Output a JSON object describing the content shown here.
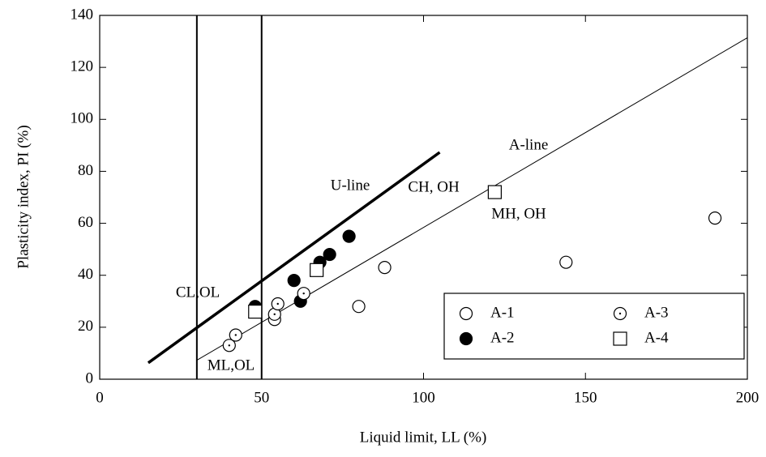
{
  "chart_data": {
    "type": "scatter",
    "x_label": "Liquid limit, LL (%)",
    "y_label": "Plasticity index, PI (%)",
    "xlim": [
      0,
      200
    ],
    "ylim": [
      0,
      140
    ],
    "xticks": [
      0,
      50,
      100,
      150,
      200
    ],
    "yticks": [
      0,
      20,
      40,
      60,
      80,
      100,
      120,
      140
    ],
    "series": [
      {
        "name": "A-1",
        "color": "#000000",
        "marker": "circle",
        "filled": false,
        "dotted": false,
        "x": [
          54,
          80,
          88,
          144,
          190
        ],
        "values": [
          23,
          28,
          43,
          45,
          62
        ]
      },
      {
        "name": "A-2",
        "color": "#000000",
        "marker": "circle",
        "filled": true,
        "dotted": false,
        "x": [
          48,
          60,
          62,
          68,
          71,
          77
        ],
        "values": [
          28,
          38,
          30,
          45,
          48,
          55
        ]
      },
      {
        "name": "A-3",
        "color": "#000000",
        "marker": "circle",
        "filled": false,
        "dotted": true,
        "x": [
          40,
          42,
          54,
          55,
          63
        ],
        "values": [
          13,
          17,
          25,
          29,
          33
        ]
      },
      {
        "name": "A-4",
        "color": "#000000",
        "marker": "square",
        "filled": false,
        "dotted": false,
        "x": [
          48,
          67,
          122
        ],
        "values": [
          26,
          42,
          72
        ]
      }
    ],
    "reference_lines": [
      {
        "name": "A-line",
        "x": [
          30,
          200
        ],
        "values": [
          7.3,
          131.4
        ],
        "width": 1
      },
      {
        "name": "U-line",
        "x": [
          15,
          105
        ],
        "values": [
          6.3,
          87.3
        ],
        "width": 3.5
      }
    ],
    "vlines": [
      30,
      50
    ],
    "annotations": [
      "CH, OH",
      "MH, OH",
      "CL,OL",
      "ML,OL"
    ],
    "legend": "lower right"
  }
}
